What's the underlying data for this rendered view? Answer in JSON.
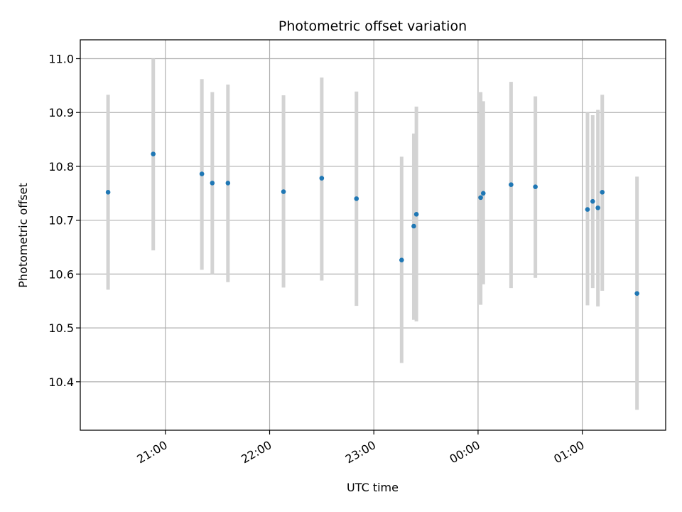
{
  "chart_data": {
    "type": "scatter",
    "title": "Photometric offset variation",
    "xlabel": "UTC time",
    "ylabel": "Photometric offset",
    "x_axis": {
      "kind": "time",
      "range": [
        "2000-01-01T20:11:00",
        "2000-01-02T01:48:00"
      ],
      "ticks": [
        {
          "t": "2000-01-01T21:00:00",
          "label": "21:00"
        },
        {
          "t": "2000-01-01T22:00:00",
          "label": "22:00"
        },
        {
          "t": "2000-01-01T23:00:00",
          "label": "23:00"
        },
        {
          "t": "2000-01-02T00:00:00",
          "label": "00:00"
        },
        {
          "t": "2000-01-02T01:00:00",
          "label": "01:00"
        }
      ]
    },
    "y_axis": {
      "range": [
        10.31,
        11.035
      ],
      "ticks": [
        10.4,
        10.5,
        10.6,
        10.7,
        10.8,
        10.9,
        11.0
      ],
      "tick_labels": [
        "10.4",
        "10.5",
        "10.6",
        "10.7",
        "10.8",
        "10.9",
        "11.0"
      ]
    },
    "grid": true,
    "colors": {
      "point": "#1f77b4",
      "errorbar": "#d3d3d3",
      "grid": "#b0b0b0"
    },
    "points": [
      {
        "t": "2000-01-01T20:27:00",
        "y": 10.752,
        "lo": 10.571,
        "hi": 10.933
      },
      {
        "t": "2000-01-01T20:53:00",
        "y": 10.823,
        "lo": 10.644,
        "hi": 11.0
      },
      {
        "t": "2000-01-01T21:21:00",
        "y": 10.786,
        "lo": 10.608,
        "hi": 10.962
      },
      {
        "t": "2000-01-01T21:27:00",
        "y": 10.769,
        "lo": 10.6,
        "hi": 10.938
      },
      {
        "t": "2000-01-01T21:36:00",
        "y": 10.769,
        "lo": 10.585,
        "hi": 10.952
      },
      {
        "t": "2000-01-01T22:08:00",
        "y": 10.753,
        "lo": 10.575,
        "hi": 10.932
      },
      {
        "t": "2000-01-01T22:30:00",
        "y": 10.778,
        "lo": 10.588,
        "hi": 10.965
      },
      {
        "t": "2000-01-01T22:50:00",
        "y": 10.74,
        "lo": 10.541,
        "hi": 10.939
      },
      {
        "t": "2000-01-01T23:16:00",
        "y": 10.626,
        "lo": 10.435,
        "hi": 10.818
      },
      {
        "t": "2000-01-01T23:23:00",
        "y": 10.689,
        "lo": 10.515,
        "hi": 10.861
      },
      {
        "t": "2000-01-01T23:24:30",
        "y": 10.711,
        "lo": 10.512,
        "hi": 10.911
      },
      {
        "t": "2000-01-02T00:01:30",
        "y": 10.742,
        "lo": 10.543,
        "hi": 10.938
      },
      {
        "t": "2000-01-02T00:03:00",
        "y": 10.75,
        "lo": 10.581,
        "hi": 10.921
      },
      {
        "t": "2000-01-02T00:19:00",
        "y": 10.766,
        "lo": 10.574,
        "hi": 10.957
      },
      {
        "t": "2000-01-02T00:33:00",
        "y": 10.762,
        "lo": 10.593,
        "hi": 10.93
      },
      {
        "t": "2000-01-02T01:03:00",
        "y": 10.72,
        "lo": 10.542,
        "hi": 10.9
      },
      {
        "t": "2000-01-02T01:06:00",
        "y": 10.735,
        "lo": 10.574,
        "hi": 10.895
      },
      {
        "t": "2000-01-02T01:09:00",
        "y": 10.723,
        "lo": 10.54,
        "hi": 10.905
      },
      {
        "t": "2000-01-02T01:11:30",
        "y": 10.752,
        "lo": 10.569,
        "hi": 10.933
      },
      {
        "t": "2000-01-02T01:31:30",
        "y": 10.564,
        "lo": 10.348,
        "hi": 10.781
      }
    ]
  }
}
